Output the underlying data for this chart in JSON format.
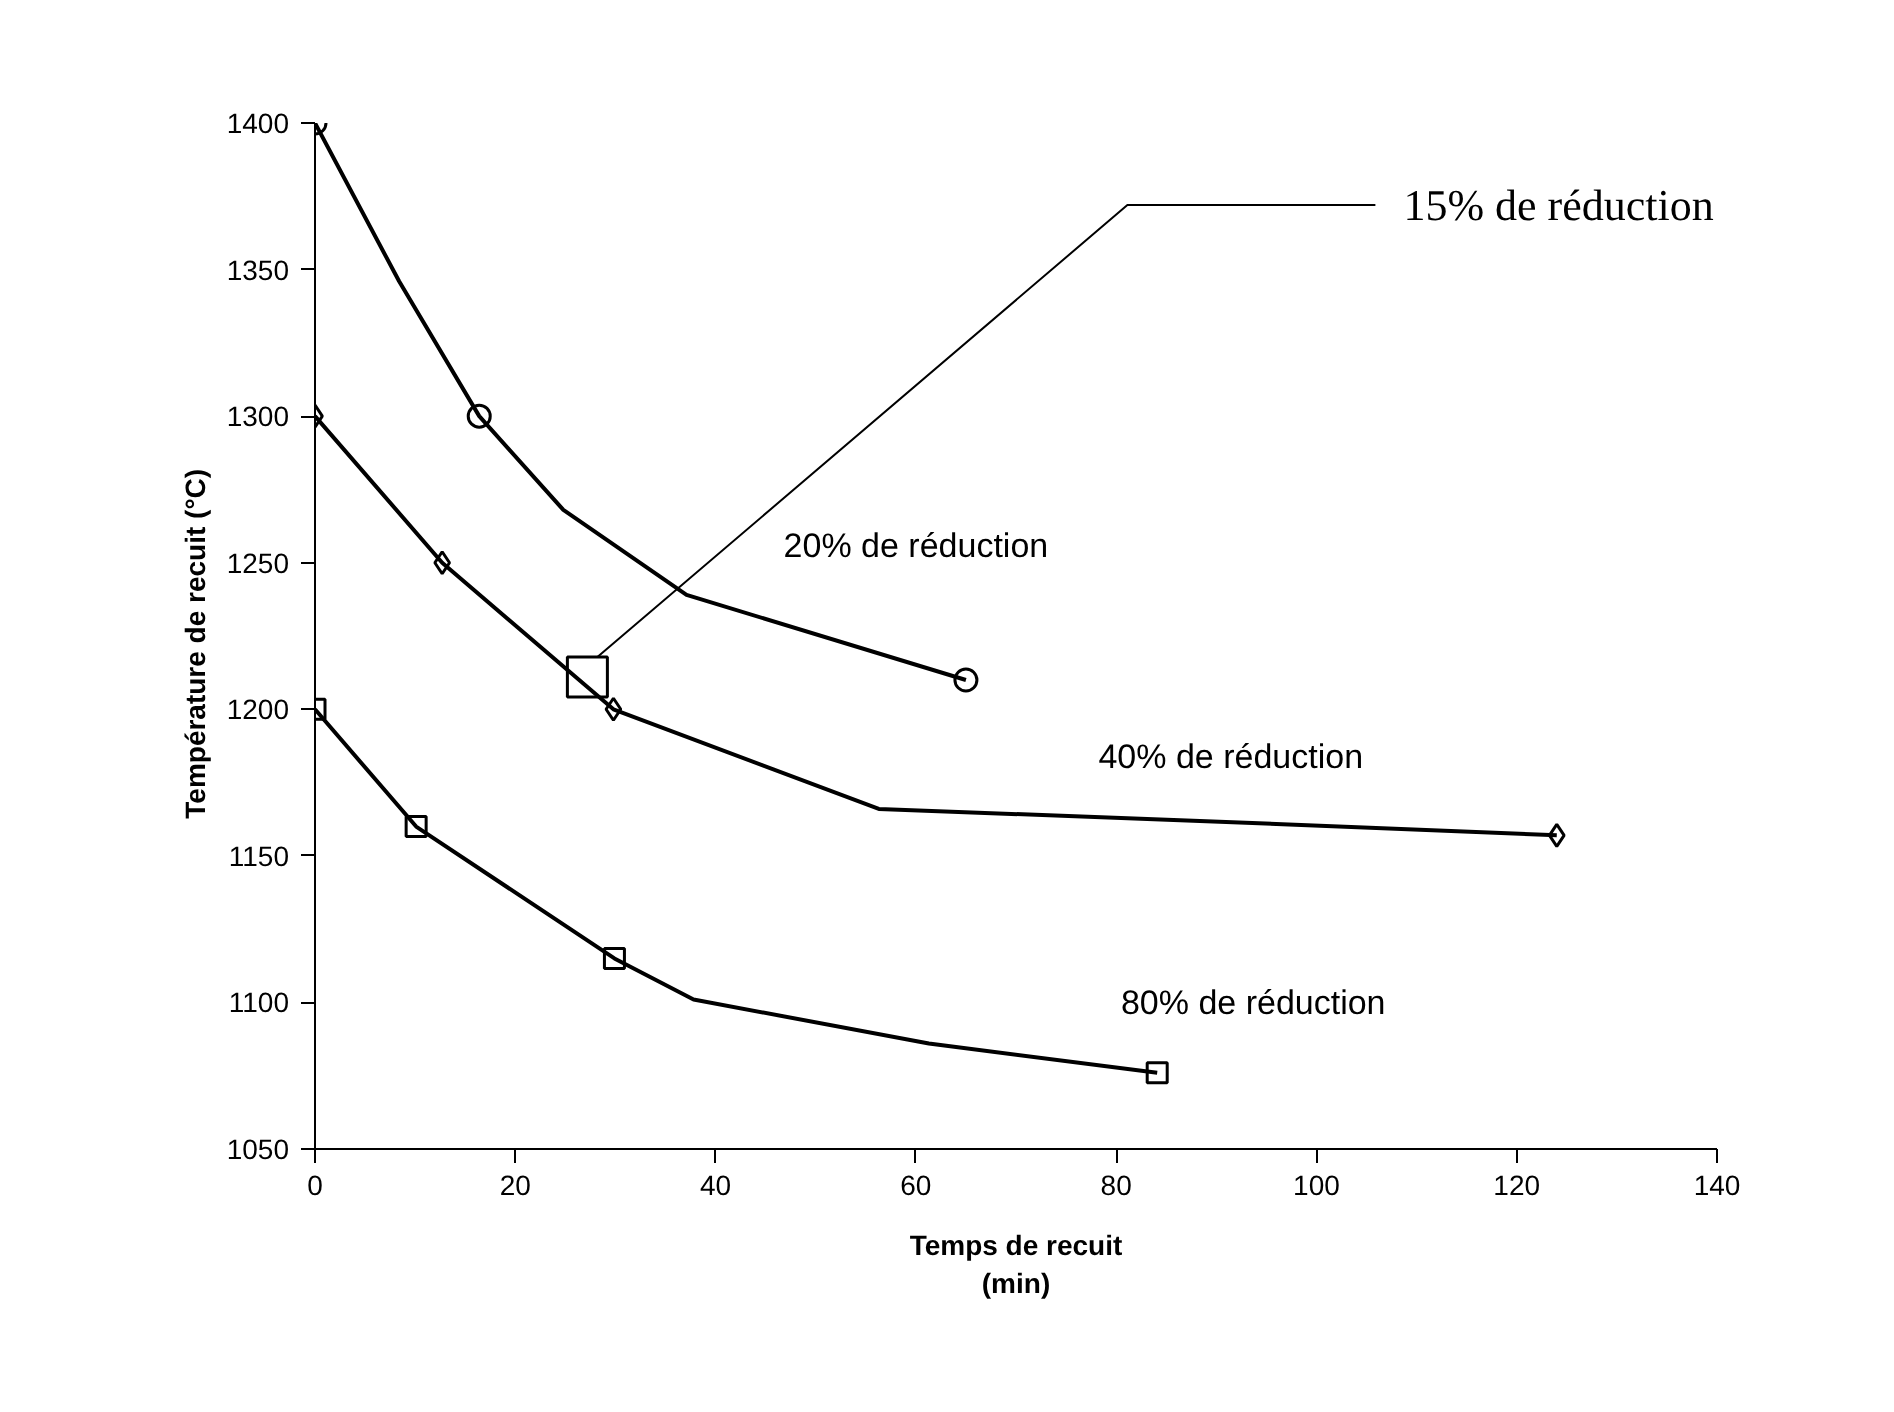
{
  "chart_data": {
    "type": "line",
    "xlabel": "Temps de recuit\n(min)",
    "ylabel": "Température de recuit   (°C)",
    "xlim": [
      0,
      140
    ],
    "xticks": [
      0,
      20,
      40,
      60,
      80,
      100,
      120,
      140
    ],
    "ylim": [
      1050,
      1400
    ],
    "yticks": [
      1050,
      1100,
      1150,
      1200,
      1250,
      1300,
      1350,
      1400
    ],
    "grid": false,
    "series": [
      {
        "name": "20% de réduction",
        "color": "#000000",
        "x": [
          0,
          8.4,
          16.4,
          24.8,
          37.1,
          65
        ],
        "values": [
          1400,
          1346,
          1300,
          1268,
          1239,
          1210
        ]
      },
      {
        "type": "scatter",
        "color": "#000000",
        "marker": "circle",
        "x": [
          0,
          16.4,
          65
        ],
        "values": [
          1400,
          1300,
          1210
        ]
      },
      {
        "name": "40% de réduction",
        "color": "#000000",
        "x": [
          0,
          12.7,
          29.8,
          56.3,
          87.7,
          124
        ],
        "values": [
          1300,
          1250,
          1200,
          1166,
          1162,
          1157
        ]
      },
      {
        "type": "scatter",
        "color": "#000000",
        "marker": "diamond",
        "x": [
          0,
          12.7,
          29.8,
          124
        ],
        "values": [
          1300,
          1250,
          1200,
          1157
        ]
      },
      {
        "name": "80% de réduction",
        "color": "#000000",
        "x": [
          0,
          10.1,
          29.9,
          37.8,
          61.3,
          84.1
        ],
        "values": [
          1200,
          1160,
          1115,
          1101,
          1086,
          1076
        ]
      },
      {
        "type": "scatter",
        "color": "#000000",
        "marker": "square",
        "x": [
          0,
          10.1,
          29.9,
          84.1
        ],
        "values": [
          1200,
          1160,
          1115,
          1076
        ]
      },
      {
        "name": "15% de réduction",
        "type": "scatter",
        "color": "#000000",
        "marker": "square",
        "x": [
          27.2
        ],
        "values": [
          1211
        ]
      }
    ]
  }
}
